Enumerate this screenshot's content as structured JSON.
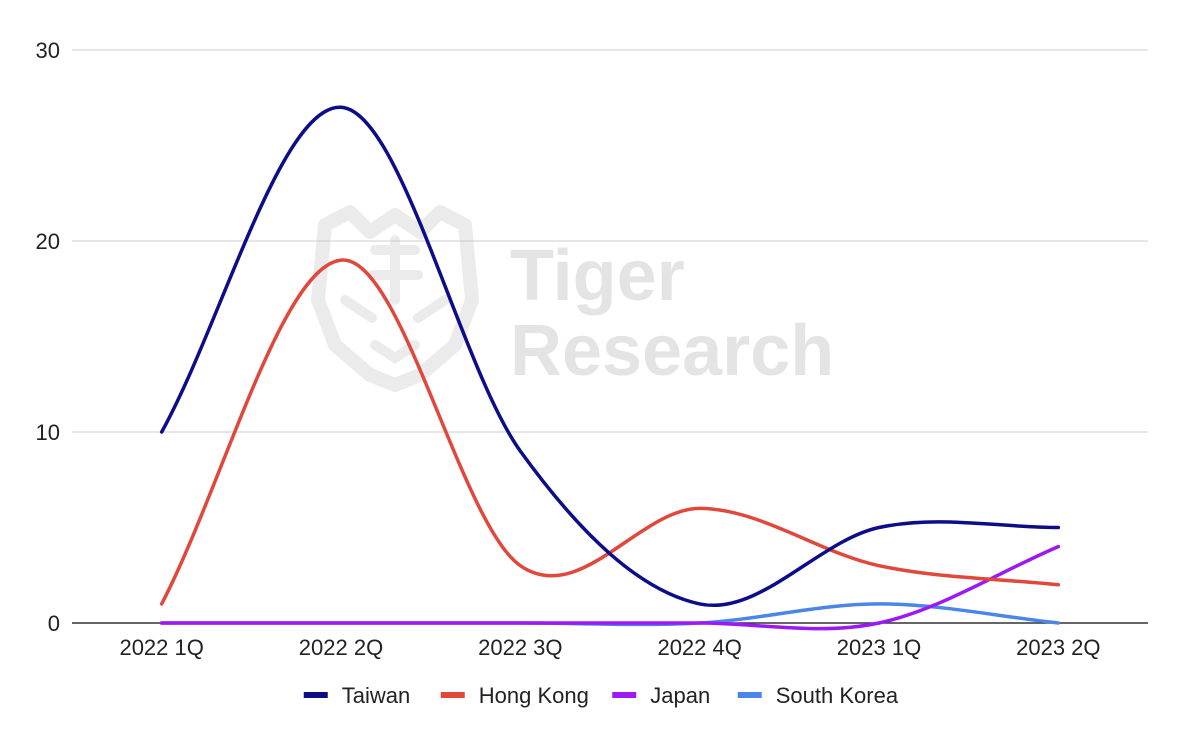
{
  "watermark": {
    "line1": "Tiger",
    "line2": "Research"
  },
  "chart_data": {
    "type": "line",
    "title": "",
    "xlabel": "",
    "ylabel": "",
    "categories": [
      "2022 1Q",
      "2022 2Q",
      "2022 3Q",
      "2022 4Q",
      "2023 1Q",
      "2023 2Q"
    ],
    "ylim": [
      0,
      30
    ],
    "yticks": [
      0,
      10,
      20,
      30
    ],
    "grid": true,
    "smooth": true,
    "legend_position": "bottom",
    "series": [
      {
        "name": "Taiwan",
        "color": "#0d0d8a",
        "values": [
          10,
          27,
          9,
          1,
          5,
          5
        ]
      },
      {
        "name": "Hong Kong",
        "color": "#e0483c",
        "values": [
          1,
          19,
          3,
          6,
          3,
          2
        ]
      },
      {
        "name": "Japan",
        "color": "#9b19f5",
        "values": [
          0,
          0,
          0,
          0,
          0,
          4
        ]
      },
      {
        "name": "South Korea",
        "color": "#4a86e8",
        "values": [
          0,
          0,
          0,
          0,
          1,
          0
        ]
      }
    ]
  }
}
